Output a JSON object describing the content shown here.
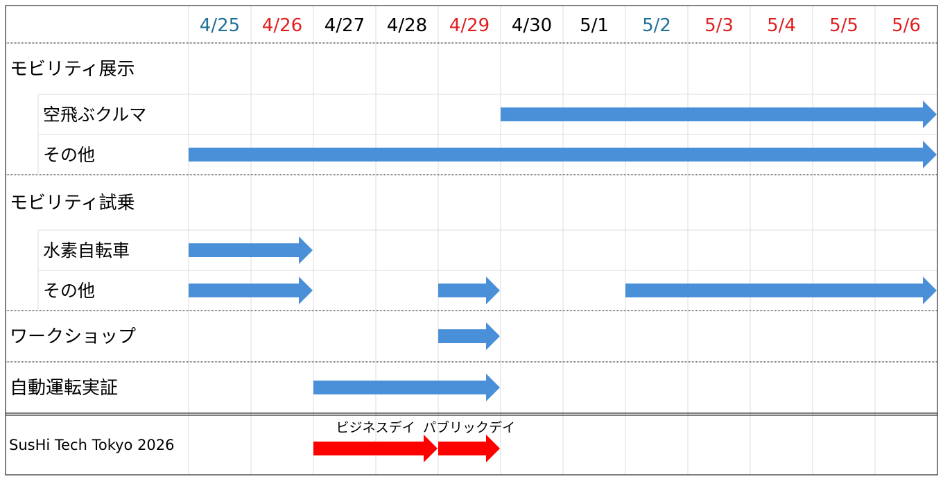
{
  "dates": [
    {
      "label": "4/25",
      "color": "#1F6F9A"
    },
    {
      "label": "4/26",
      "color": "#E02020"
    },
    {
      "label": "4/27",
      "color": "#000000"
    },
    {
      "label": "4/28",
      "color": "#000000"
    },
    {
      "label": "4/29",
      "color": "#E02020"
    },
    {
      "label": "4/30",
      "color": "#000000"
    },
    {
      "label": "5/1",
      "color": "#000000"
    },
    {
      "label": "5/2",
      "color": "#1F6F9A"
    },
    {
      "label": "5/3",
      "color": "#E02020"
    },
    {
      "label": "5/4",
      "color": "#E02020"
    },
    {
      "label": "5/5",
      "color": "#E02020"
    },
    {
      "label": "5/6",
      "color": "#E02020"
    }
  ],
  "rows": [
    {
      "id": "mobility-exhibit",
      "label": "モビリティ展示",
      "kind": "category",
      "bars": []
    },
    {
      "id": "flying-car",
      "label": "空飛ぶクルマ",
      "kind": "sub",
      "bars": [
        {
          "start": "4/30",
          "end": "5/6"
        }
      ]
    },
    {
      "id": "exhibit-other",
      "label": "その他",
      "kind": "sub",
      "bars": [
        {
          "start": "4/25",
          "end": "5/6"
        }
      ]
    },
    {
      "id": "mobility-ride",
      "label": "モビリティ試乗",
      "kind": "category",
      "bars": []
    },
    {
      "id": "hydrogen-bike",
      "label": "水素自転車",
      "kind": "sub",
      "bars": [
        {
          "start": "4/25",
          "end": "4/26"
        }
      ]
    },
    {
      "id": "ride-other",
      "label": "その他",
      "kind": "sub",
      "bars": [
        {
          "start": "4/25",
          "end": "4/26"
        },
        {
          "start": "4/29",
          "end": "4/29"
        },
        {
          "start": "5/2",
          "end": "5/6"
        }
      ]
    },
    {
      "id": "workshop",
      "label": "ワークショップ",
      "kind": "category",
      "bars": [
        {
          "start": "4/29",
          "end": "4/29"
        }
      ]
    },
    {
      "id": "autonomous",
      "label": "自動運転実証",
      "kind": "category",
      "bars": [
        {
          "start": "4/27",
          "end": "4/29"
        }
      ]
    }
  ],
  "footer": {
    "label": "SusHi Tech Tokyo 2026",
    "phases": [
      {
        "label": "ビジネスデイ",
        "start": "4/27",
        "end": "4/28"
      },
      {
        "label": "パブリックデイ",
        "start": "4/29",
        "end": "4/29"
      }
    ]
  },
  "colors": {
    "bar": "#4A90D9",
    "footer_bar": "#FF0000",
    "grid": "#DDDDDD"
  }
}
